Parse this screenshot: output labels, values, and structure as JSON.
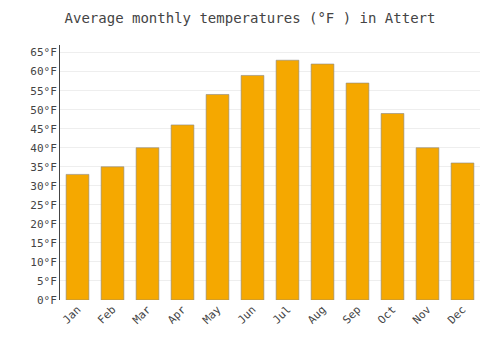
{
  "chart_data": {
    "type": "bar",
    "title": "Average monthly temperatures (°F ) in Attert",
    "categories": [
      "Jan",
      "Feb",
      "Mar",
      "Apr",
      "May",
      "Jun",
      "Jul",
      "Aug",
      "Sep",
      "Oct",
      "Nov",
      "Dec"
    ],
    "values": [
      33,
      35,
      40,
      46,
      54,
      59,
      63,
      62,
      57,
      49,
      40,
      36
    ],
    "color": "#F5A800",
    "ylim": [
      0,
      67
    ],
    "yticks": [
      {
        "value": 0,
        "label": "0°F"
      },
      {
        "value": 5,
        "label": "5°F"
      },
      {
        "value": 10,
        "label": "10°F"
      },
      {
        "value": 15,
        "label": "15°F"
      },
      {
        "value": 20,
        "label": "20°F"
      },
      {
        "value": 25,
        "label": "25°F"
      },
      {
        "value": 30,
        "label": "30°F"
      },
      {
        "value": 35,
        "label": "35°F"
      },
      {
        "value": 40,
        "label": "40°F"
      },
      {
        "value": 45,
        "label": "45°F"
      },
      {
        "value": 50,
        "label": "50°F"
      },
      {
        "value": 55,
        "label": "55°F"
      },
      {
        "value": 60,
        "label": "60°F"
      },
      {
        "value": 65,
        "label": "65°F"
      }
    ],
    "grid": true
  }
}
